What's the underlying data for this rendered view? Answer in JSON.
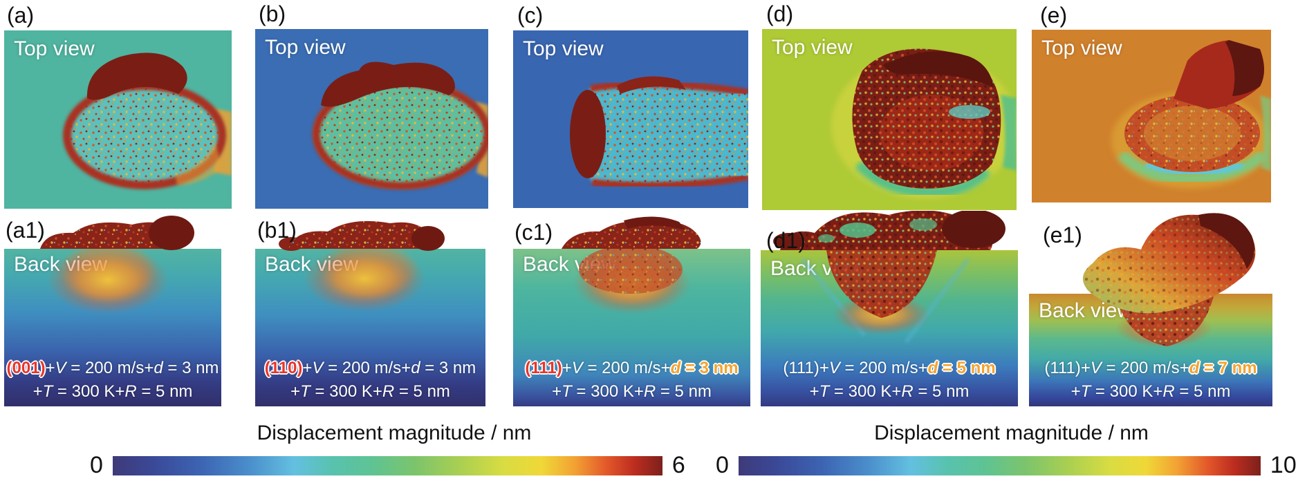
{
  "figure": {
    "panels": [
      {
        "top_label": "(a)",
        "view_top": "Top view",
        "back_label": "(a1)",
        "view_back": "Back view",
        "cond1": [
          {
            "t": "(001)",
            "c": "hl-plane"
          },
          {
            "t": "+"
          },
          {
            "t": "V",
            "c": "it"
          },
          {
            "t": " = 200 m/s+"
          },
          {
            "t": "d",
            "c": "it"
          },
          {
            "t": " = 3 nm"
          }
        ],
        "cond2": [
          {
            "t": "+"
          },
          {
            "t": "T",
            "c": "it"
          },
          {
            "t": " = 300 K+"
          },
          {
            "t": "R",
            "c": "it"
          },
          {
            "t": " = 5 nm"
          }
        ]
      },
      {
        "top_label": "(b)",
        "view_top": "Top view",
        "back_label": "(b1)",
        "view_back": "Back view",
        "cond1": [
          {
            "t": "(110)",
            "c": "hl-plane"
          },
          {
            "t": "+"
          },
          {
            "t": "V",
            "c": "it"
          },
          {
            "t": " = 200 m/s+"
          },
          {
            "t": "d",
            "c": "it"
          },
          {
            "t": " = 3 nm"
          }
        ],
        "cond2": [
          {
            "t": "+"
          },
          {
            "t": "T",
            "c": "it"
          },
          {
            "t": " = 300 K+"
          },
          {
            "t": "R",
            "c": "it"
          },
          {
            "t": " = 5 nm"
          }
        ]
      },
      {
        "top_label": "(c)",
        "view_top": "Top view",
        "back_label": "(c1)",
        "view_back": "Back view",
        "cond1": [
          {
            "t": "(111)",
            "c": "hl-plane"
          },
          {
            "t": "+"
          },
          {
            "t": "V",
            "c": "it"
          },
          {
            "t": " = 200 m/s+"
          },
          {
            "t": "d",
            "c": "it hl-depth"
          },
          {
            "t": " = 3 nm",
            "c": "hl-depth"
          }
        ],
        "cond2": [
          {
            "t": "+"
          },
          {
            "t": "T",
            "c": "it"
          },
          {
            "t": " = 300 K+"
          },
          {
            "t": "R",
            "c": "it"
          },
          {
            "t": " = 5 nm"
          }
        ]
      },
      {
        "top_label": "(d)",
        "view_top": "Top view",
        "back_label": "(d1)",
        "view_back": "Back view",
        "cond1": [
          {
            "t": "(111)"
          },
          {
            "t": "+"
          },
          {
            "t": "V",
            "c": "it"
          },
          {
            "t": " = 200 m/s+"
          },
          {
            "t": "d",
            "c": "it hl-depth"
          },
          {
            "t": " = 5 nm",
            "c": "hl-depth"
          }
        ],
        "cond2": [
          {
            "t": "+"
          },
          {
            "t": "T",
            "c": "it"
          },
          {
            "t": " = 300 K+"
          },
          {
            "t": "R",
            "c": "it"
          },
          {
            "t": " = 5 nm"
          }
        ]
      },
      {
        "top_label": "(e)",
        "view_top": "Top view",
        "back_label": "(e1)",
        "view_back": "Back view",
        "cond1": [
          {
            "t": "(111)"
          },
          {
            "t": "+"
          },
          {
            "t": "V",
            "c": "it"
          },
          {
            "t": " = 200 m/s+"
          },
          {
            "t": "d",
            "c": "it hl-depth"
          },
          {
            "t": " = 7 nm",
            "c": "hl-depth"
          }
        ],
        "cond2": [
          {
            "t": "+"
          },
          {
            "t": "T",
            "c": "it"
          },
          {
            "t": " = 300 K+"
          },
          {
            "t": "R",
            "c": "it"
          },
          {
            "t": " = 5 nm"
          }
        ]
      }
    ],
    "colorbars": [
      {
        "title": "Displacement magnitude / nm",
        "min": "0",
        "max": "6"
      },
      {
        "title": "Displacement magnitude / nm",
        "min": "0",
        "max": "10"
      }
    ],
    "colors": {
      "plane_highlight": "#e8352b",
      "depth_highlight": "#f2a431",
      "colormap_start": "#3e3a79",
      "colormap_end": "#7c211c"
    }
  }
}
